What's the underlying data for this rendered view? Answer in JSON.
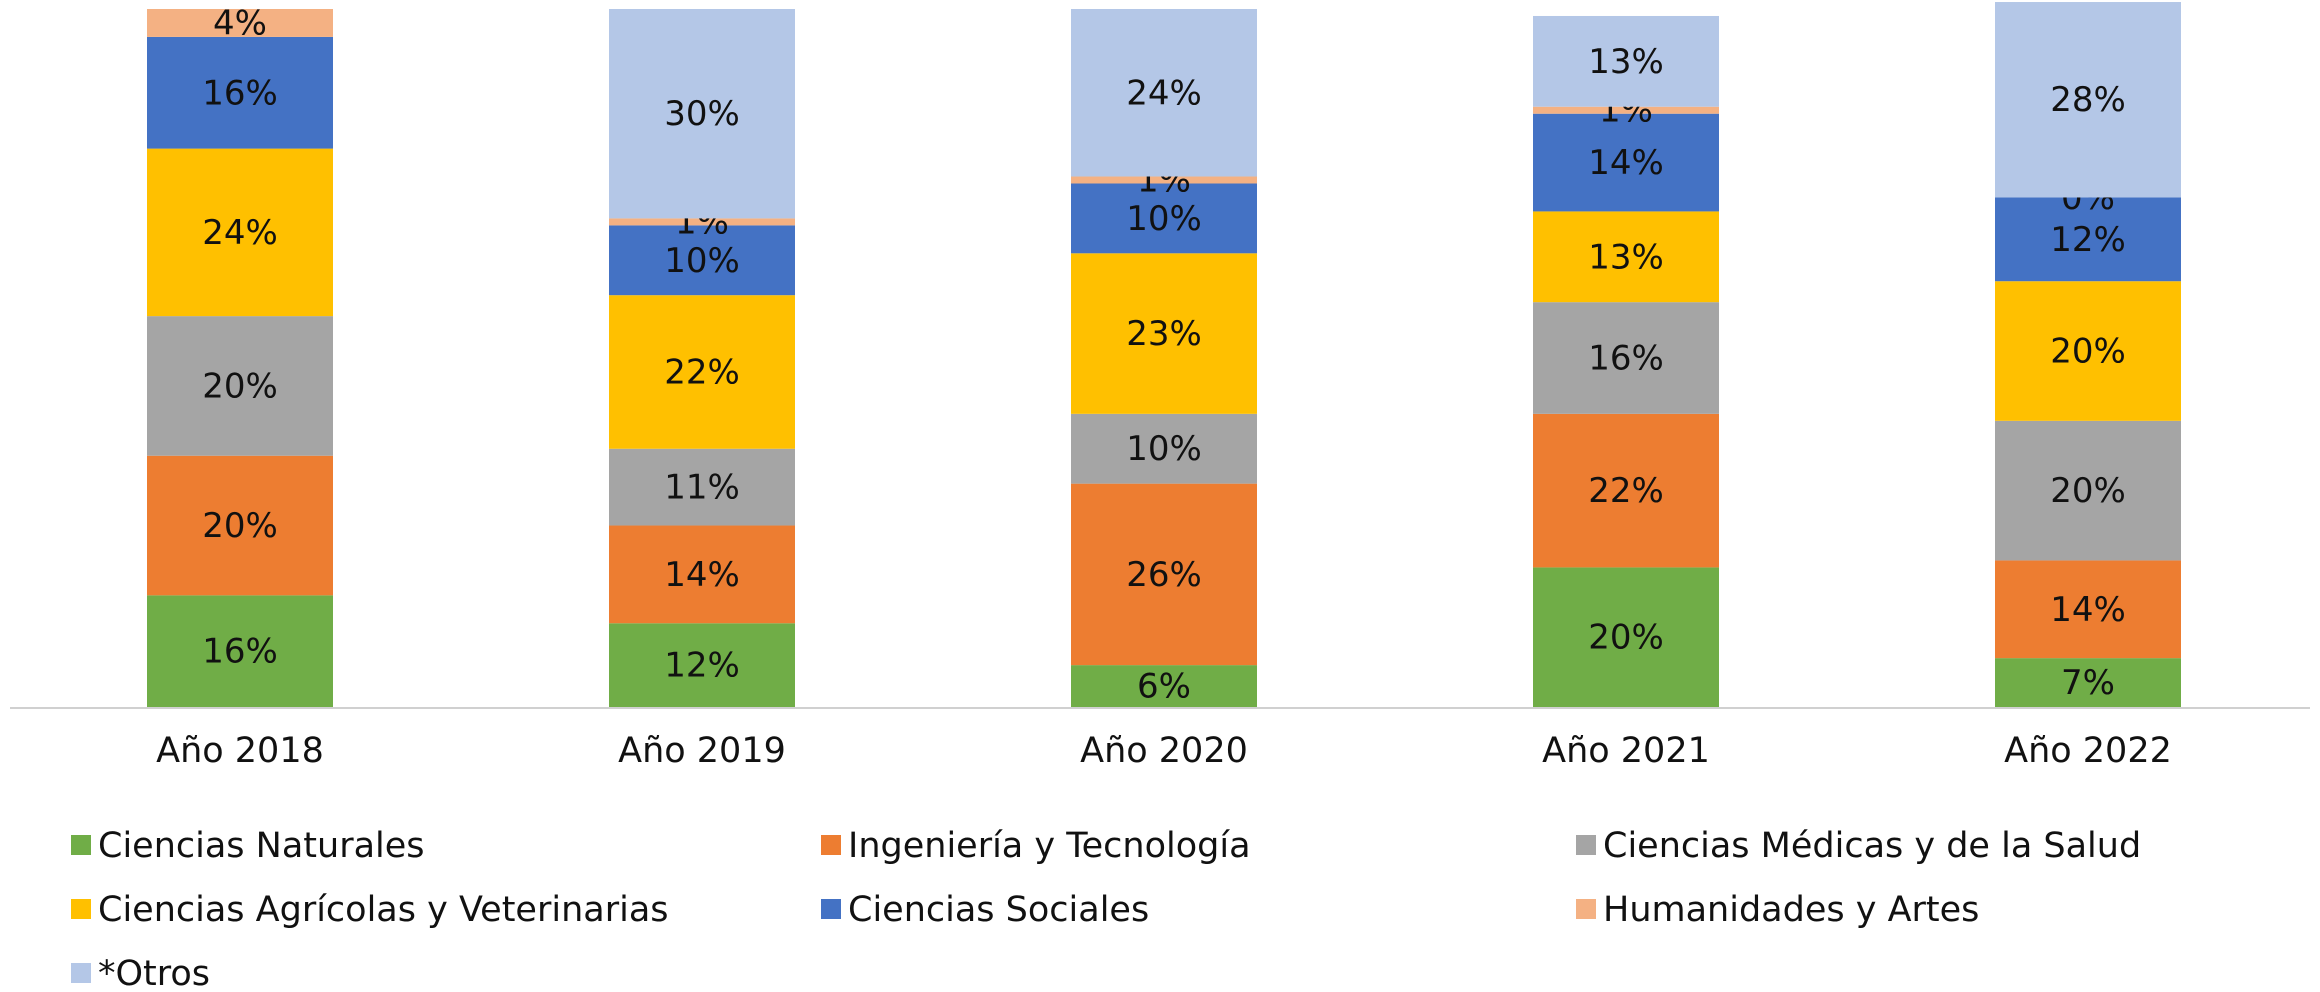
{
  "chart_data": {
    "type": "stacked_bar",
    "categories": [
      "Año 2018",
      "Año 2019",
      "Año 2020",
      "Año 2021",
      "Año 2022"
    ],
    "ylim": [
      0,
      100
    ],
    "series": [
      {
        "name": "Ciencias Naturales",
        "color": "#70ad47",
        "values": [
          16,
          12,
          6,
          20,
          7
        ],
        "value_labels": [
          "16%",
          "12%",
          "6%",
          "20%",
          "7%"
        ]
      },
      {
        "name": "Ingeniería y Tecnología",
        "color": "#ed7d31",
        "values": [
          20,
          14,
          26,
          22,
          14
        ],
        "value_labels": [
          "20%",
          "14%",
          "26%",
          "22%",
          "14%"
        ]
      },
      {
        "name": "Ciencias Médicas y de la Salud",
        "color": "#a5a5a5",
        "values": [
          20,
          11,
          10,
          16,
          20
        ],
        "value_labels": [
          "20%",
          "11%",
          "10%",
          "16%",
          "20%"
        ]
      },
      {
        "name": "Ciencias Agrícolas y Veterinarias",
        "color": "#ffc000",
        "values": [
          24,
          22,
          23,
          13,
          20
        ],
        "value_labels": [
          "24%",
          "22%",
          "23%",
          "13%",
          "20%"
        ]
      },
      {
        "name": "Ciencias Sociales",
        "color": "#4472c4",
        "values": [
          16,
          10,
          10,
          14,
          12
        ],
        "value_labels": [
          "16%",
          "10%",
          "10%",
          "14%",
          "12%"
        ]
      },
      {
        "name": "Humanidades y Artes",
        "color": "#f4b183",
        "values": [
          4,
          1,
          1,
          1,
          0
        ],
        "value_labels": [
          "4%",
          "1%",
          "1%",
          "1%",
          "0%"
        ]
      },
      {
        "name": "*Otros",
        "color": "#b4c7e7",
        "values": [
          null,
          30,
          24,
          13,
          28
        ],
        "value_labels": [
          null,
          "30%",
          "24%",
          "13%",
          "28%"
        ]
      }
    ]
  }
}
